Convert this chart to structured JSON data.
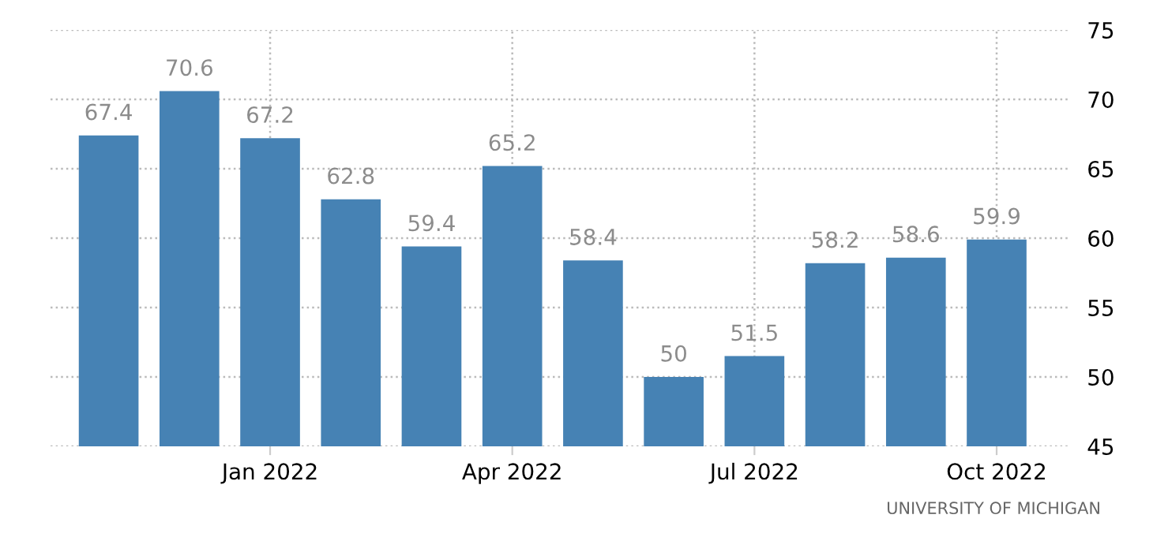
{
  "chart_data": {
    "type": "bar",
    "categories": [
      null,
      null,
      "Jan 2022",
      null,
      null,
      "Apr 2022",
      null,
      null,
      "Jul 2022",
      null,
      null,
      "Oct 2022"
    ],
    "values": [
      67.4,
      70.6,
      67.2,
      62.8,
      59.4,
      65.2,
      58.4,
      50,
      51.5,
      58.2,
      58.6,
      59.9
    ],
    "color": "#4682b4",
    "ylim": [
      45,
      75
    ],
    "yticks": [
      45,
      50,
      55,
      60,
      65,
      70,
      75
    ],
    "grid": true,
    "data_labels": true,
    "annotations": [
      "UNIVERSITY OF MICHIGAN"
    ]
  }
}
